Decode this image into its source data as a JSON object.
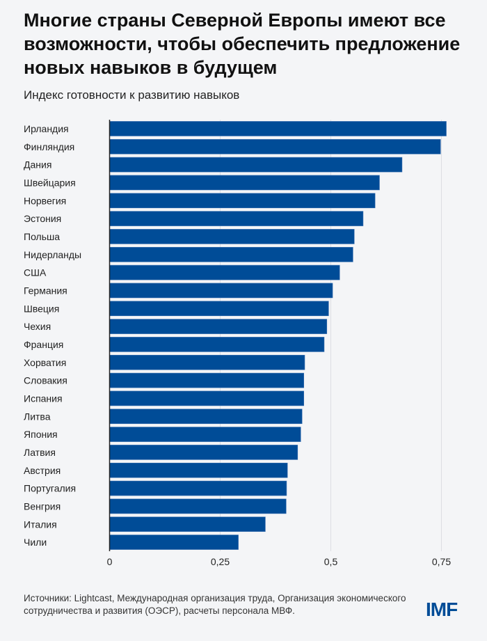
{
  "title": "Многие страны Северной Европы имеют все возможности, чтобы обеспечить предложение новых навыков в будущем",
  "subtitle": "Индекс готовности к развитию навыков",
  "source": "Источники: Lightcast, Международная организация труда, Организация экономического сотрудничества и развития (ОЭСР), расчеты персонала МВФ.",
  "logo": "IMF",
  "colors": {
    "bar": "#004c97",
    "background": "#f4f5f7",
    "grid": "#dcdee3"
  },
  "chart_data": {
    "type": "bar",
    "orientation": "horizontal",
    "title": "Индекс готовности к развитию навыков",
    "xlabel": "",
    "ylabel": "",
    "xlim": [
      0,
      0.8
    ],
    "grid": true,
    "x_ticks": [
      0,
      0.25,
      0.5,
      0.75
    ],
    "x_tick_labels": [
      "0",
      "0,25",
      "0,5",
      "0,75"
    ],
    "categories": [
      "Ирландия",
      "Финляндия",
      "Дания",
      "Швейцария",
      "Норвегия",
      "Эстония",
      "Польша",
      "Нидерланды",
      "США",
      "Германия",
      "Швеция",
      "Чехия",
      "Франция",
      "Хорватия",
      "Словакия",
      "Испания",
      "Литва",
      "Япония",
      "Латвия",
      "Австрия",
      "Португалия",
      "Венгрия",
      "Италия",
      "Чили"
    ],
    "values": [
      0.761,
      0.748,
      0.661,
      0.61,
      0.6,
      0.573,
      0.553,
      0.55,
      0.52,
      0.504,
      0.495,
      0.491,
      0.485,
      0.441,
      0.439,
      0.439,
      0.435,
      0.432,
      0.425,
      0.402,
      0.4,
      0.399,
      0.352,
      0.291
    ]
  }
}
